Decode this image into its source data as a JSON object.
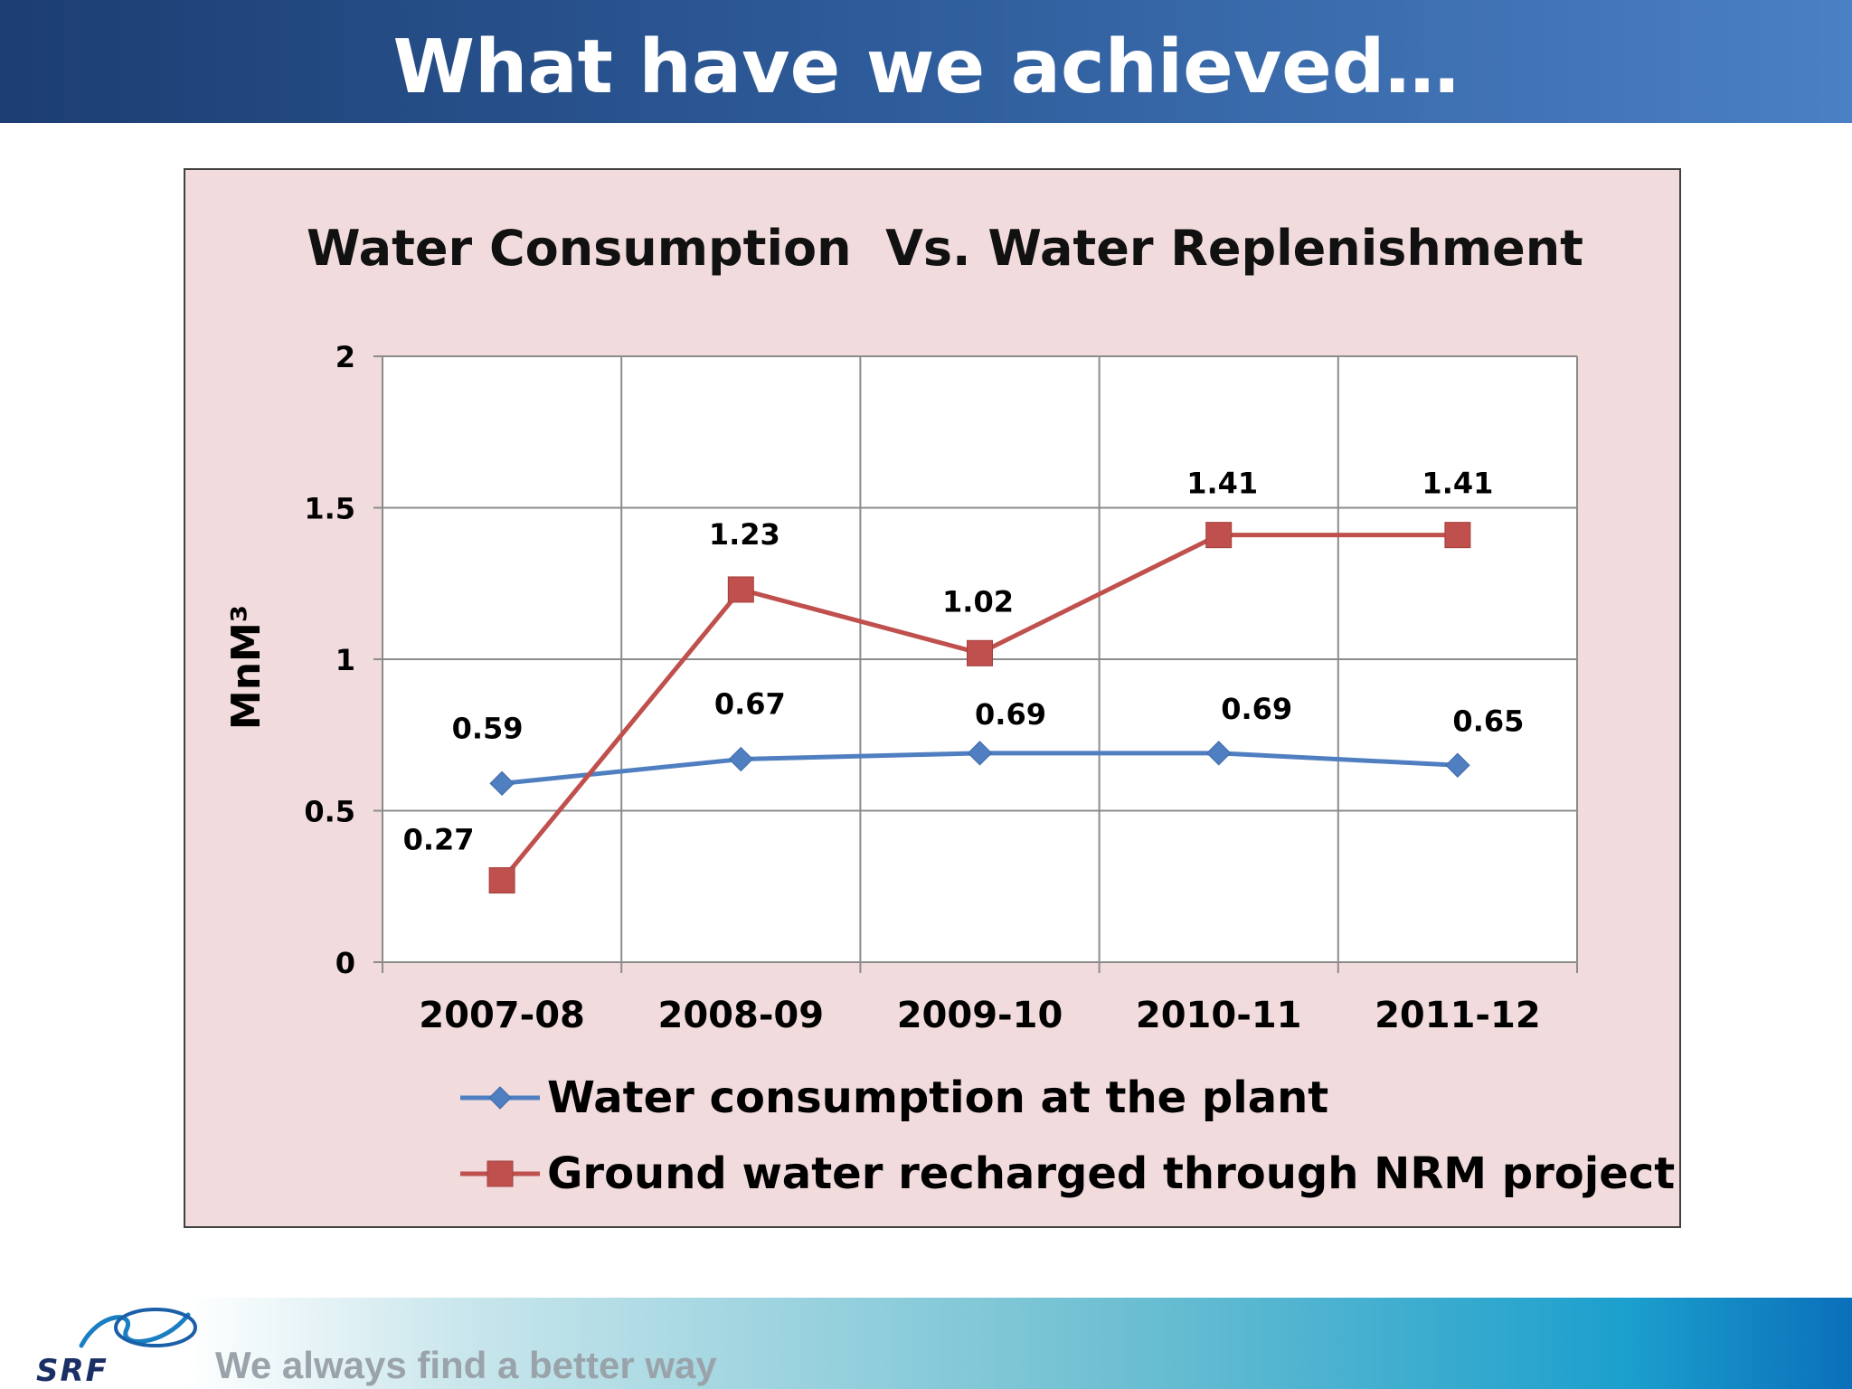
{
  "slide": {
    "title": "What have we achieved…",
    "tagline": "We always find a better way",
    "logo_text": "SRF"
  },
  "colors": {
    "header_dark": "#1c3e72",
    "header_light": "#4a80c4",
    "chart_background": "#f1dbdc",
    "series_consumption": "#4f7fc0",
    "series_recharge": "#c0504d"
  },
  "chart_data": {
    "type": "line",
    "title": "Water Consumption  Vs. Water Replenishment",
    "ylabel": "MnM³",
    "xlabel": "",
    "categories": [
      "2007-08",
      "2008-09",
      "2009-10",
      "2010-11",
      "2011-12"
    ],
    "ylim": [
      0,
      2
    ],
    "yticks": [
      "0",
      "0.5",
      "1",
      "1.5",
      "2"
    ],
    "grid": true,
    "legend_position": "bottom",
    "series": [
      {
        "name": "Water consumption at the plant",
        "values": [
          0.59,
          0.67,
          0.69,
          0.69,
          0.65
        ],
        "labels": [
          "0.59",
          "0.67",
          "0.69",
          "0.69",
          "0.65"
        ],
        "marker": "diamond",
        "color": "#4f7fc0"
      },
      {
        "name": "Ground water recharged through NRM project",
        "values": [
          0.27,
          1.23,
          1.02,
          1.41,
          1.41
        ],
        "labels": [
          "0.27",
          "1.23",
          "1.02",
          "1.41",
          "1.41"
        ],
        "marker": "square",
        "color": "#c0504d"
      }
    ]
  }
}
